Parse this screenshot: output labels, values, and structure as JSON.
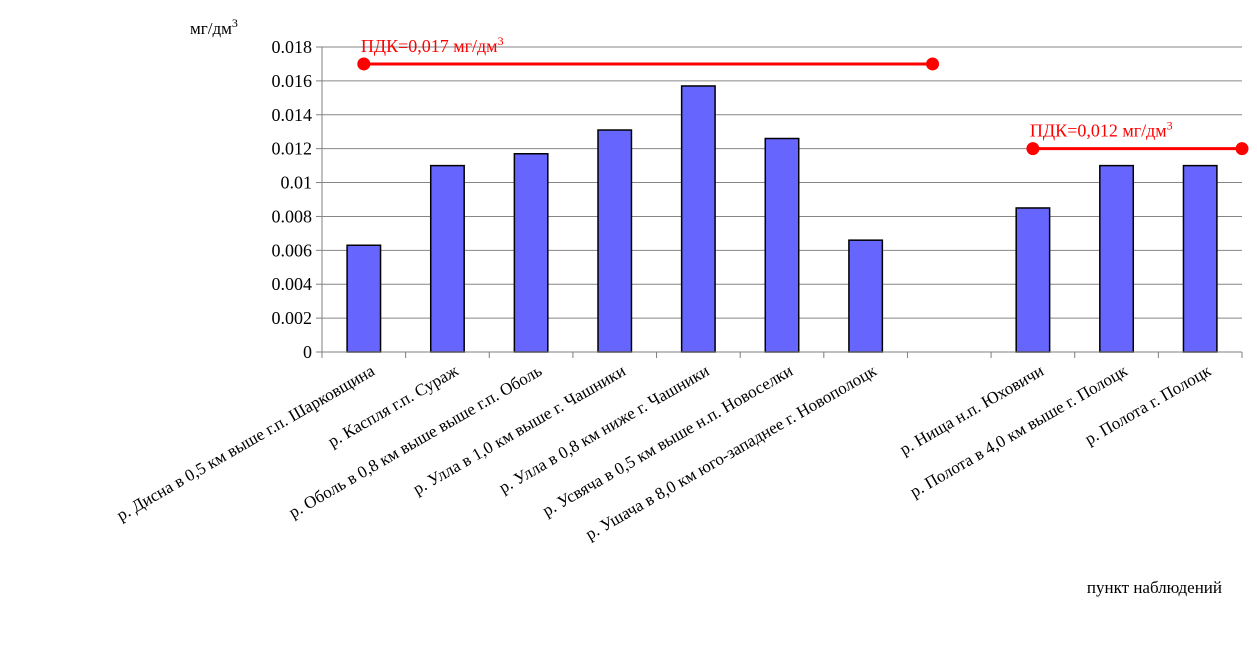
{
  "chart_data": {
    "type": "bar",
    "ylabel": "мг/дм",
    "ylabel_sup": "3",
    "xlabel": "пункт наблюдений",
    "ylim": [
      0,
      0.018
    ],
    "ytick_step": 0.002,
    "yticks": [
      "0",
      "0.002",
      "0.004",
      "0.006",
      "0.008",
      "0.01",
      "0.012",
      "0.014",
      "0.016",
      "0.018"
    ],
    "grid": true,
    "legend": "none",
    "categories": [
      "р. Дисна в 0,5 км выше г.п.  Шарковщина",
      "р. Каспля г.п. Сураж",
      "р. Оболь в 0,8 км выше выше г.п. Оболь",
      "р. Улла в 1,0 км выше г. Чашники",
      "р. Улла в 0,8 км ниже г. Чашники",
      "р. Усвяча в 0,5 км выше н.п. Новоселки",
      "р. Ушача в 8,0 км юго-западнее г. Новополоцк",
      "",
      "р. Нища н.п. Юховичи",
      "р. Полота в 4,0 км выше г. Полоцк",
      "р. Полота г. Полоцк"
    ],
    "series": [
      {
        "values": [
          0.0063,
          0.011,
          0.0117,
          0.0131,
          0.0157,
          0.0126,
          0.0066,
          null,
          0.0085,
          0.011,
          0.011
        ],
        "color": "#6666ff"
      }
    ],
    "reference_lines": [
      {
        "label": "ПДК=0,017 мг/дм",
        "label_sup": "3",
        "value": 0.017,
        "from_category": 0,
        "to_category": 6.8,
        "color": "#ff0000"
      },
      {
        "label": "ПДК=0,012 мг/дм",
        "label_sup": "3",
        "value": 0.012,
        "from_category": 8,
        "to_category": 10.5,
        "color": "#ff0000"
      }
    ]
  }
}
